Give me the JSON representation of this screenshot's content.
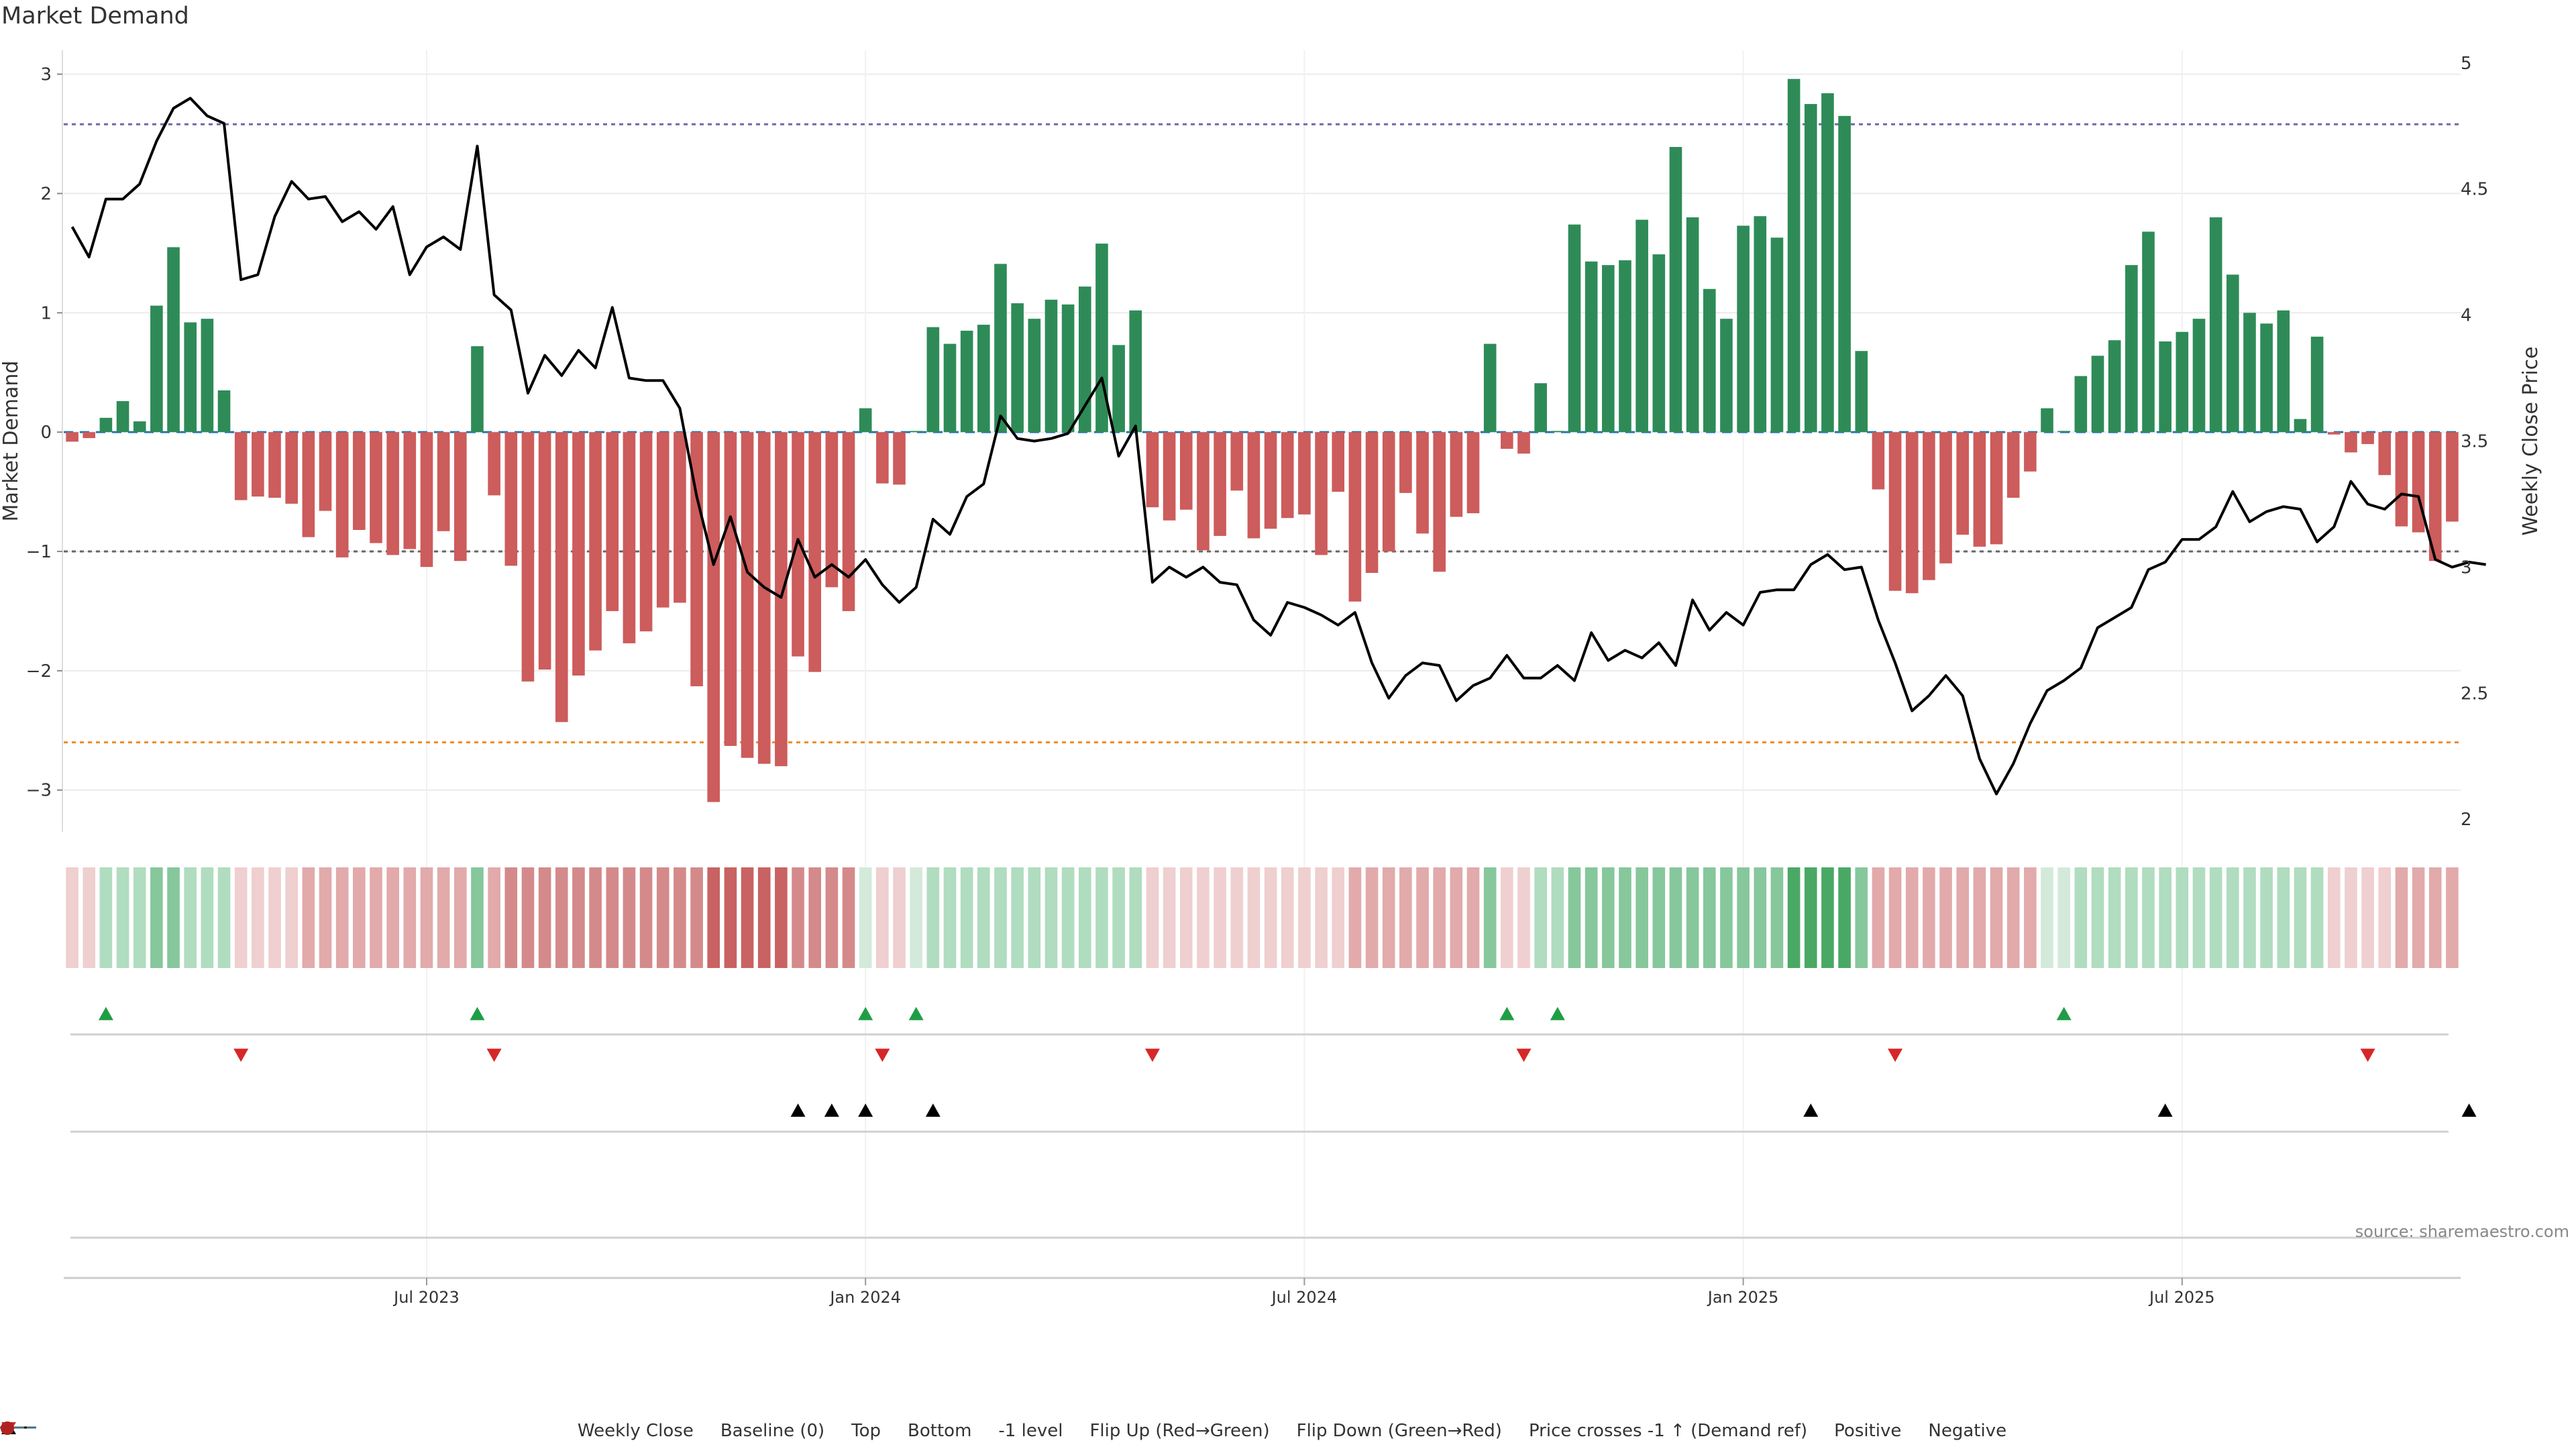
{
  "title": "Market Demand",
  "source_note": "source: sharemaestro.com",
  "colors": {
    "positive": "#2e8b57",
    "negative": "#cd5c5c",
    "price_line": "#000000",
    "top_line": "#6a6ab0",
    "bottom_line": "#f08c28",
    "minus1_line": "#666666",
    "baseline": "#1f77b4",
    "flip_up": "#1f9d45",
    "flip_down": "#d62728",
    "cross": "#000000"
  },
  "legend": [
    {
      "key": "weekly_close",
      "label": "Weekly Close",
      "icon": "line-solid"
    },
    {
      "key": "baseline",
      "label": "Baseline (0)",
      "icon": "line-dashed-blue"
    },
    {
      "key": "top",
      "label": "Top",
      "icon": "line-dotted-purple"
    },
    {
      "key": "bottom",
      "label": "Bottom",
      "icon": "line-dotted-orange"
    },
    {
      "key": "minus1",
      "label": "-1 level",
      "icon": "line-dotted-grey"
    },
    {
      "key": "flip_up",
      "label": "Flip Up (Red→Green)",
      "icon": "triangle-up-green"
    },
    {
      "key": "flip_down",
      "label": "Flip Down (Green→Red)",
      "icon": "triangle-down-red"
    },
    {
      "key": "cross",
      "label": "Price crosses -1 ↑ (Demand ref)",
      "icon": "triangle-up-black"
    },
    {
      "key": "positive",
      "label": "Positive",
      "icon": "dot-green"
    },
    {
      "key": "negative",
      "label": "Negative",
      "icon": "dot-red"
    }
  ],
  "chart_data": {
    "type": "bar",
    "title": "Market Demand",
    "ylabel": "Market Demand",
    "y2label": "Weekly Close Price",
    "ylim": [
      -3.35,
      3.2
    ],
    "y2lim": [
      1.95,
      5.05
    ],
    "yticks": [
      -3,
      -2,
      -1,
      0,
      1,
      2,
      3
    ],
    "y2ticks": [
      2,
      2.5,
      3,
      3.5,
      4,
      4.5,
      5
    ],
    "ytick_labels": [
      "−3",
      "−2",
      "−1",
      "0",
      "1",
      "2",
      "3"
    ],
    "y2tick_labels": [
      "2",
      "2.5",
      "3",
      "3.5",
      "4",
      "4.5",
      "5"
    ],
    "xticks": [
      {
        "week": 21,
        "label": "Jul 2023"
      },
      {
        "week": 47,
        "label": "Jan 2024"
      },
      {
        "week": 73,
        "label": "Jul 2024"
      },
      {
        "week": 99,
        "label": "Jan 2025"
      },
      {
        "week": 125,
        "label": "Jul 2025"
      }
    ],
    "reference_levels": {
      "top": 2.58,
      "bottom": -2.6,
      "minus1": -1.0,
      "baseline": 0
    },
    "demand": [
      -0.08,
      -0.05,
      0.12,
      0.26,
      0.09,
      1.06,
      1.55,
      0.92,
      0.95,
      0.35,
      -0.57,
      -0.54,
      -0.55,
      -0.6,
      -0.88,
      -0.66,
      -1.05,
      -0.82,
      -0.93,
      -1.03,
      -0.98,
      -1.13,
      -0.83,
      -1.08,
      0.72,
      -0.53,
      -1.12,
      -2.09,
      -1.99,
      -2.43,
      -2.04,
      -1.83,
      -1.5,
      -1.77,
      -1.67,
      -1.47,
      -1.43,
      -2.13,
      -3.1,
      -2.63,
      -2.73,
      -2.78,
      -2.8,
      -1.88,
      -2.01,
      -1.3,
      -1.5,
      0.2,
      -0.43,
      -0.44,
      0.01,
      0.88,
      0.74,
      0.85,
      0.9,
      1.41,
      1.08,
      0.95,
      1.11,
      1.07,
      1.22,
      1.58,
      0.73,
      1.02,
      -0.63,
      -0.74,
      -0.65,
      -0.99,
      -0.87,
      -0.49,
      -0.89,
      -0.81,
      -0.72,
      -0.69,
      -1.03,
      -0.5,
      -1.42,
      -1.18,
      -1,
      -0.51,
      -0.85,
      -1.17,
      -0.71,
      -0.68,
      0.74,
      -0.14,
      -0.18,
      0.41,
      0.01,
      1.74,
      1.43,
      1.4,
      1.44,
      1.78,
      1.49,
      2.39,
      1.8,
      1.2,
      0.95,
      1.73,
      1.81,
      1.63,
      2.96,
      2.75,
      2.84,
      2.65,
      0.68,
      -0.48,
      -1.33,
      -1.35,
      -1.24,
      -1.1,
      -0.86,
      -0.96,
      -0.94,
      -0.55,
      -0.33,
      0.2,
      0.01,
      0.47,
      0.64,
      0.77,
      1.4,
      1.68,
      0.76,
      0.84,
      0.95,
      1.8,
      1.32,
      1.0,
      0.91,
      1.02,
      0.11,
      0.8,
      -0.02,
      -0.17,
      -0.1,
      -0.36,
      -0.79,
      -0.84,
      -1.08,
      -0.75
    ],
    "price": [
      4.35,
      4.23,
      4.46,
      4.46,
      4.52,
      4.69,
      4.82,
      4.86,
      4.79,
      4.76,
      4.14,
      4.16,
      4.39,
      4.53,
      4.46,
      4.47,
      4.37,
      4.41,
      4.34,
      4.43,
      4.16,
      4.27,
      4.31,
      4.26,
      4.67,
      4.08,
      4.02,
      3.69,
      3.84,
      3.76,
      3.86,
      3.79,
      4.03,
      3.75,
      3.74,
      3.74,
      3.63,
      3.28,
      3.01,
      3.2,
      2.98,
      2.92,
      2.88,
      3.11,
      2.96,
      3.01,
      2.96,
      3.03,
      2.93,
      2.86,
      2.92,
      3.19,
      3.13,
      3.28,
      3.33,
      3.6,
      3.51,
      3.5,
      3.51,
      3.53,
      3.64,
      3.75,
      3.44,
      3.56,
      2.94,
      3.0,
      2.96,
      3.0,
      2.94,
      2.93,
      2.79,
      2.73,
      2.86,
      2.84,
      2.81,
      2.77,
      2.82,
      2.62,
      2.48,
      2.57,
      2.62,
      2.61,
      2.47,
      2.53,
      2.56,
      2.65,
      2.56,
      2.56,
      2.61,
      2.55,
      2.74,
      2.63,
      2.67,
      2.64,
      2.7,
      2.61,
      2.87,
      2.75,
      2.82,
      2.77,
      2.9,
      2.91,
      2.91,
      3.01,
      3.05,
      2.99,
      3.0,
      2.79,
      2.62,
      2.43,
      2.49,
      2.57,
      2.49,
      2.24,
      2.1,
      2.22,
      2.38,
      2.51,
      2.55,
      2.6,
      2.76,
      2.8,
      2.84,
      2.99,
      3.02,
      3.11,
      3.11,
      3.16,
      3.3,
      3.18,
      3.22,
      3.24,
      3.23,
      3.1,
      3.16,
      3.34,
      3.25,
      3.23,
      3.29,
      3.28,
      3.03,
      3.0,
      3.02,
      3.01
    ],
    "strip_levels": [
      1,
      1,
      2,
      2,
      2,
      3,
      3,
      2,
      2,
      2,
      1,
      1,
      1,
      1,
      2,
      2,
      2,
      2,
      2,
      2,
      2,
      2,
      2,
      2,
      3,
      2,
      3,
      3,
      3,
      3,
      3,
      3,
      3,
      3,
      3,
      3,
      3,
      3,
      4,
      4,
      4,
      4,
      4,
      3,
      3,
      3,
      3,
      1,
      1,
      1,
      1,
      2,
      2,
      2,
      2,
      2,
      2,
      2,
      2,
      2,
      2,
      2,
      2,
      2,
      1,
      1,
      1,
      1,
      1,
      1,
      1,
      1,
      1,
      1,
      1,
      1,
      2,
      2,
      2,
      2,
      2,
      2,
      2,
      2,
      3,
      1,
      1,
      2,
      2,
      3,
      3,
      3,
      3,
      3,
      3,
      3,
      3,
      3,
      3,
      3,
      3,
      3,
      4,
      4,
      4,
      4,
      3,
      2,
      2,
      2,
      2,
      2,
      2,
      2,
      2,
      2,
      2,
      1,
      1,
      2,
      2,
      2,
      2,
      2,
      2,
      2,
      2,
      2,
      2,
      2,
      2,
      2,
      2,
      2,
      1,
      1,
      1,
      1,
      2,
      2,
      2,
      2
    ],
    "flip_up_weeks": [
      2,
      24,
      47,
      50,
      85,
      88,
      118
    ],
    "flip_down_weeks": [
      10,
      25,
      48,
      64,
      86,
      108,
      136
    ],
    "cross_up_weeks": [
      43,
      45,
      47,
      51,
      103,
      124,
      142
    ]
  }
}
